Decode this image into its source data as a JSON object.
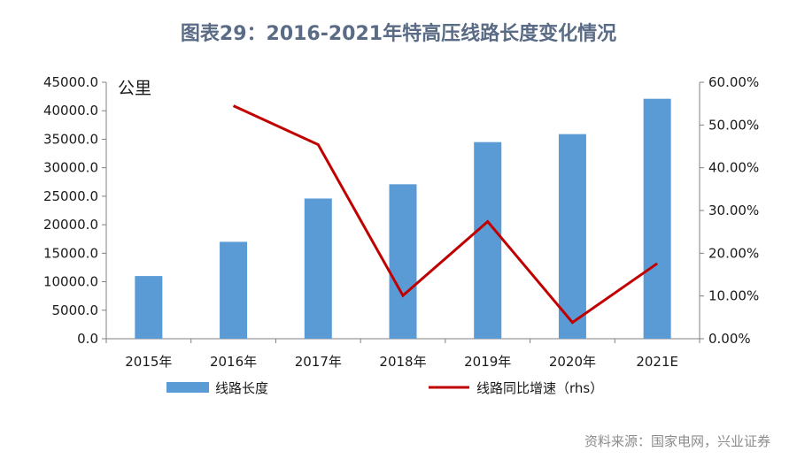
{
  "title": "图表29：2016-2021年特高压线路长度变化情况",
  "source": "资料来源：国家电网，兴业证券",
  "colors": {
    "bar": "#5b9bd5",
    "line": "#c00000",
    "title": "#5a6b85"
  },
  "chart_data": {
    "type": "bar+line",
    "categories": [
      "2015年",
      "2016年",
      "2017年",
      "2018年",
      "2019年",
      "2020年",
      "2021E"
    ],
    "series": [
      {
        "name": "线路长度",
        "type": "bar",
        "axis": "left",
        "values": [
          11000,
          17000,
          24600,
          27100,
          34500,
          35900,
          42100
        ]
      },
      {
        "name": "线路同比增速（rhs）",
        "type": "line",
        "axis": "right",
        "values": [
          null,
          0.545,
          0.454,
          0.101,
          0.274,
          0.038,
          0.176
        ]
      }
    ],
    "y_left": {
      "unit": "公里",
      "ylim": [
        0,
        45000
      ],
      "ticks": [
        "0.0",
        "5000.0",
        "10000.0",
        "15000.0",
        "20000.0",
        "25000.0",
        "30000.0",
        "35000.0",
        "40000.0",
        "45000.0"
      ]
    },
    "y_right": {
      "ylim": [
        0,
        0.6
      ],
      "ticks": [
        "0.00%",
        "10.00%",
        "20.00%",
        "30.00%",
        "40.00%",
        "50.00%",
        "60.00%"
      ]
    },
    "grid": false,
    "legend": "bottom"
  }
}
